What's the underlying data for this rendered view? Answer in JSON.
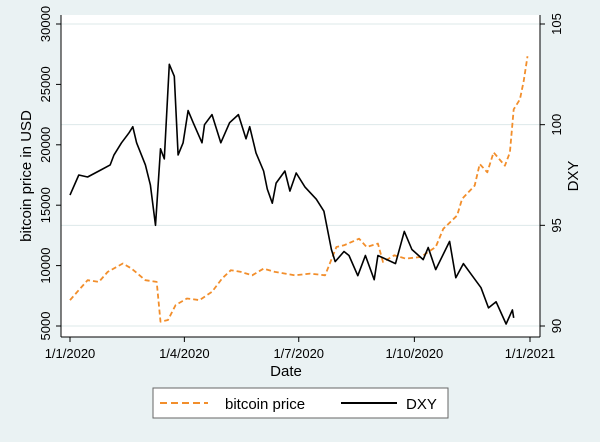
{
  "chart_data": {
    "type": "line",
    "xlabel": "Date",
    "ylabel_left": "bitcoin price in USD",
    "ylabel_right": "DXY",
    "x_unit": "day of year from 1/1/2020",
    "xlim": [
      0,
      366
    ],
    "x_ticks": [
      {
        "day": 0,
        "label": "1/1/2020"
      },
      {
        "day": 91,
        "label": "1/4/2020"
      },
      {
        "day": 182,
        "label": "1/7/2020"
      },
      {
        "day": 274,
        "label": "1/10/2020"
      },
      {
        "day": 366,
        "label": "1/1/2021"
      }
    ],
    "ylim_left": [
      5000,
      30000
    ],
    "y_ticks_left": [
      "5000",
      "10000",
      "15000",
      "20000",
      "25000",
      "30000"
    ],
    "ylim_right": [
      90,
      105
    ],
    "y_ticks_right": [
      "90",
      "95",
      "100",
      "105"
    ],
    "grid": true,
    "legend_position": "bottom",
    "series": [
      {
        "name": "bitcoin price",
        "axis": "left",
        "color": "#f28e2b",
        "style": "dashed",
        "points": [
          [
            0,
            7140
          ],
          [
            7,
            7970
          ],
          [
            14,
            8790
          ],
          [
            23,
            8650
          ],
          [
            30,
            9480
          ],
          [
            42,
            10170
          ],
          [
            49,
            9750
          ],
          [
            60,
            8790
          ],
          [
            69,
            8650
          ],
          [
            72,
            5360
          ],
          [
            78,
            5500
          ],
          [
            84,
            6730
          ],
          [
            93,
            7280
          ],
          [
            103,
            7140
          ],
          [
            113,
            7830
          ],
          [
            121,
            8930
          ],
          [
            128,
            9620
          ],
          [
            136,
            9480
          ],
          [
            145,
            9200
          ],
          [
            154,
            9750
          ],
          [
            163,
            9480
          ],
          [
            179,
            9200
          ],
          [
            191,
            9340
          ],
          [
            203,
            9200
          ],
          [
            212,
            11540
          ],
          [
            218,
            11680
          ],
          [
            230,
            12230
          ],
          [
            236,
            11540
          ],
          [
            245,
            11820
          ],
          [
            249,
            10300
          ],
          [
            258,
            10850
          ],
          [
            267,
            10580
          ],
          [
            279,
            10710
          ],
          [
            291,
            11540
          ],
          [
            297,
            13050
          ],
          [
            308,
            14150
          ],
          [
            312,
            15520
          ],
          [
            322,
            16620
          ],
          [
            326,
            18410
          ],
          [
            332,
            17720
          ],
          [
            337,
            19370
          ],
          [
            346,
            18270
          ],
          [
            350,
            19370
          ],
          [
            353,
            22940
          ],
          [
            358,
            23760
          ],
          [
            361,
            25270
          ],
          [
            364,
            27330
          ]
        ]
      },
      {
        "name": "DXY",
        "axis": "right",
        "color": "#000000",
        "style": "solid",
        "points": [
          [
            0,
            96.5
          ],
          [
            7,
            97.5
          ],
          [
            14,
            97.4
          ],
          [
            23,
            97.7
          ],
          [
            32,
            98.0
          ],
          [
            35,
            98.5
          ],
          [
            41,
            99.1
          ],
          [
            47,
            99.6
          ],
          [
            50,
            99.9
          ],
          [
            53,
            99.1
          ],
          [
            60,
            98.0
          ],
          [
            64,
            97.0
          ],
          [
            68,
            95.0
          ],
          [
            72,
            98.8
          ],
          [
            75,
            98.3
          ],
          [
            79,
            103.0
          ],
          [
            83,
            102.4
          ],
          [
            86,
            98.5
          ],
          [
            90,
            99.1
          ],
          [
            94,
            100.7
          ],
          [
            98,
            100.1
          ],
          [
            105,
            99.1
          ],
          [
            107,
            100.0
          ],
          [
            113,
            100.5
          ],
          [
            120,
            99.1
          ],
          [
            127,
            100.1
          ],
          [
            134,
            100.5
          ],
          [
            140,
            99.3
          ],
          [
            143,
            99.9
          ],
          [
            148,
            98.6
          ],
          [
            154,
            97.7
          ],
          [
            157,
            96.8
          ],
          [
            161,
            96.1
          ],
          [
            164,
            97.1
          ],
          [
            171,
            97.7
          ],
          [
            175,
            96.7
          ],
          [
            180,
            97.6
          ],
          [
            187,
            96.9
          ],
          [
            196,
            96.3
          ],
          [
            202,
            95.7
          ],
          [
            208,
            93.8
          ],
          [
            211,
            93.2
          ],
          [
            218,
            93.7
          ],
          [
            222,
            93.5
          ],
          [
            229,
            92.5
          ],
          [
            235,
            93.5
          ],
          [
            242,
            92.3
          ],
          [
            245,
            93.5
          ],
          [
            259,
            93.1
          ],
          [
            266,
            94.7
          ],
          [
            272,
            93.8
          ],
          [
            281,
            93.3
          ],
          [
            285,
            93.9
          ],
          [
            291,
            92.8
          ],
          [
            302,
            94.2
          ],
          [
            307,
            92.4
          ],
          [
            313,
            93.1
          ],
          [
            320,
            92.5
          ],
          [
            327,
            91.9
          ],
          [
            333,
            90.9
          ],
          [
            339,
            91.2
          ],
          [
            347,
            90.1
          ],
          [
            352,
            90.8
          ],
          [
            353,
            90.4
          ]
        ]
      }
    ]
  }
}
